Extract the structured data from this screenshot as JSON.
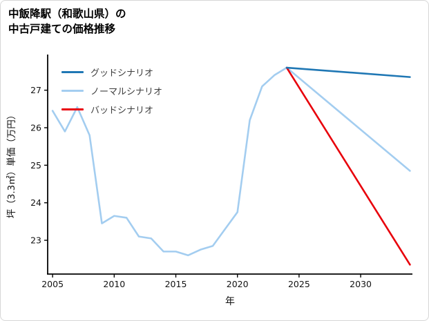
{
  "header": {
    "title_line1": "中飯降駅（和歌山県）の",
    "title_line2": "中古戸建ての価格推移"
  },
  "legend": {
    "items": [
      {
        "label": "グッドシナリオ",
        "color": "#1f77b4"
      },
      {
        "label": "ノーマルシナリオ",
        "color": "#a3cdf0"
      },
      {
        "label": "バッドシナリオ",
        "color": "#e8000b"
      }
    ]
  },
  "chart_data": {
    "type": "line",
    "title": "中飯降駅（和歌山県）の中古戸建ての価格推移",
    "xlabel": "年",
    "ylabel": "坪（3.3㎡）単価（万円）",
    "xlim": [
      2004.6,
      2034.2
    ],
    "ylim": [
      22.1,
      27.95
    ],
    "xticks": [
      2005,
      2010,
      2015,
      2020,
      2025,
      2030
    ],
    "yticks": [
      23,
      24,
      25,
      26,
      27
    ],
    "grid": false,
    "legend_position": "upper-left",
    "series": [
      {
        "name": "グッドシナリオ",
        "color": "#1f77b4",
        "x": [
          2024,
          2034
        ],
        "y": [
          27.6,
          27.35
        ]
      },
      {
        "name": "ノーマルシナリオ",
        "color": "#a3cdf0",
        "x": [
          2005,
          2006,
          2007,
          2008,
          2009,
          2010,
          2011,
          2012,
          2013,
          2014,
          2015,
          2016,
          2017,
          2018,
          2019,
          2020,
          2021,
          2022,
          2023,
          2024,
          2034
        ],
        "y": [
          26.45,
          25.9,
          26.55,
          25.8,
          23.45,
          23.65,
          23.6,
          23.1,
          23.05,
          22.7,
          22.7,
          22.6,
          22.75,
          22.85,
          23.3,
          23.75,
          26.2,
          27.1,
          27.4,
          27.6,
          24.85
        ]
      },
      {
        "name": "バッドシナリオ",
        "color": "#e8000b",
        "x": [
          2024,
          2034
        ],
        "y": [
          27.6,
          22.35
        ]
      }
    ]
  }
}
